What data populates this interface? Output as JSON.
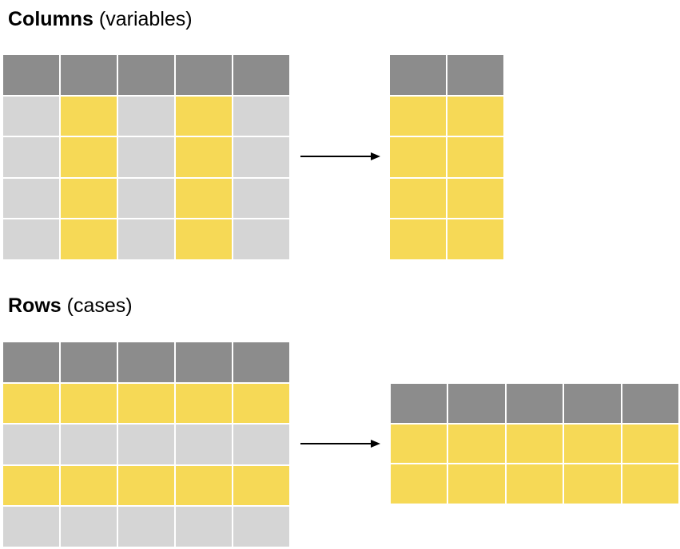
{
  "columns_section": {
    "title_bold": "Columns",
    "title_light": "(variables)"
  },
  "rows_section": {
    "title_bold": "Rows",
    "title_light": "(cases)"
  },
  "colors": {
    "header": "#8c8c8c",
    "unselected": "#d5d5d5",
    "selected": "#f6d956",
    "arrow": "#000000"
  },
  "grids": {
    "columns_source": {
      "cols": 5,
      "rows": 5,
      "header_row": true,
      "selected_columns": [
        2,
        4
      ]
    },
    "columns_result": {
      "cols": 2,
      "rows": 5,
      "header_row": true,
      "all_selected": true
    },
    "rows_source": {
      "cols": 5,
      "rows": 5,
      "header_row": true,
      "selected_rows": [
        1,
        3
      ]
    },
    "rows_result": {
      "cols": 5,
      "rows": 3,
      "header_row": true,
      "all_selected": true
    }
  },
  "arrows": [
    {
      "name": "columns-arrow-icon",
      "direction": "right"
    },
    {
      "name": "rows-arrow-icon",
      "direction": "right"
    }
  ]
}
